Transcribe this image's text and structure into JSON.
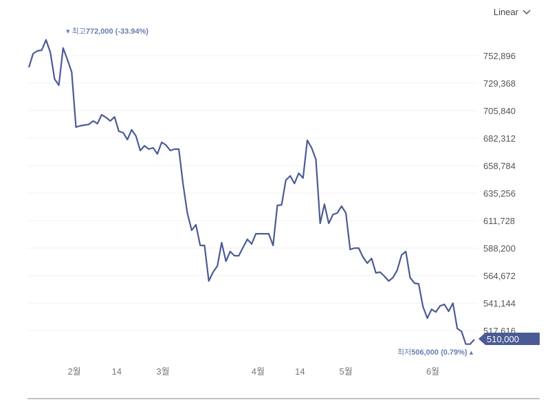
{
  "scale_select": {
    "label": "Linear"
  },
  "chart_data": {
    "type": "line",
    "title": "",
    "xlabel": "",
    "ylabel": "",
    "color": "#4a5a94",
    "y_ticks": [
      517616,
      541144,
      564672,
      588200,
      611728,
      635256,
      658784,
      682312,
      705840,
      729368,
      752896
    ],
    "y_tick_labels": [
      "517,616",
      "541,144",
      "564,672",
      "588,200",
      "611,728",
      "635,256",
      "658,784",
      "682,312",
      "705,840",
      "729,368",
      "752,896"
    ],
    "ylim": [
      506000,
      772000
    ],
    "x_ticks": [
      {
        "index": 10.6,
        "label": "2월"
      },
      {
        "index": 20.5,
        "label": "14"
      },
      {
        "index": 31.3,
        "label": "3월"
      },
      {
        "index": 53.5,
        "label": "4월"
      },
      {
        "index": 63.3,
        "label": "14"
      },
      {
        "index": 74,
        "label": "5월"
      },
      {
        "index": 94.3,
        "label": "6월"
      }
    ],
    "values": [
      742900,
      754660,
      757000,
      757600,
      766400,
      755800,
      732900,
      727600,
      759400,
      749400,
      738800,
      691700,
      692900,
      693500,
      694100,
      697000,
      694700,
      702300,
      700000,
      697000,
      700500,
      688200,
      687000,
      681100,
      689400,
      684100,
      671700,
      675800,
      672900,
      674100,
      668800,
      678800,
      676400,
      671700,
      672900,
      672900,
      642900,
      618200,
      603500,
      608200,
      590500,
      590500,
      560000,
      567600,
      572900,
      592900,
      577000,
      585300,
      581700,
      581700,
      588800,
      595800,
      591700,
      600500,
      600500,
      600500,
      600500,
      590500,
      624700,
      625200,
      646400,
      650000,
      643500,
      652300,
      648200,
      680500,
      674100,
      664100,
      609400,
      625800,
      609400,
      617000,
      618200,
      624100,
      618200,
      587000,
      588200,
      588200,
      580500,
      575300,
      579400,
      567000,
      567600,
      564100,
      560000,
      563000,
      569400,
      582300,
      585300,
      563000,
      558200,
      557600,
      538200,
      528200,
      535800,
      533500,
      538800,
      540000,
      534100,
      541100,
      519400,
      517000,
      506000,
      506000,
      510000
    ],
    "high": {
      "label": "최고",
      "value": "772,000",
      "change": "(-33.94%)"
    },
    "low": {
      "label": "최저",
      "value": "506,000",
      "change": "(0.79%)"
    },
    "current": {
      "value": 510000,
      "label": "510,000"
    }
  }
}
